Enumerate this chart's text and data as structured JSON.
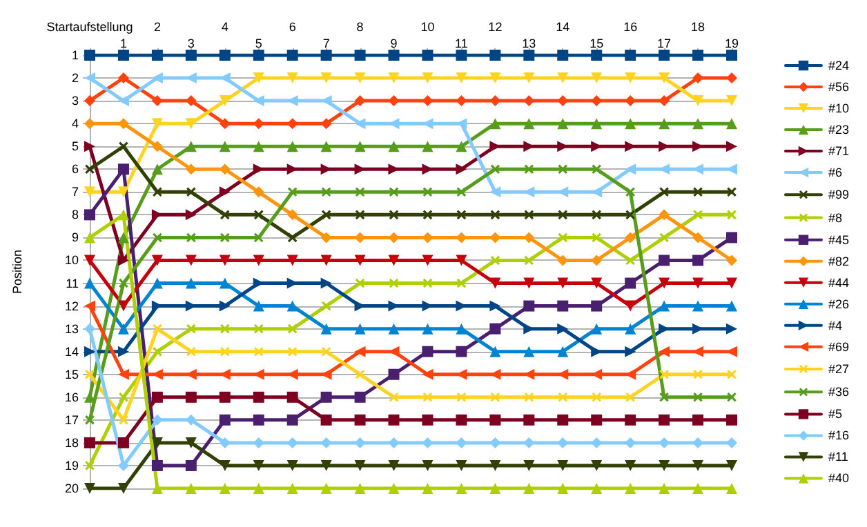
{
  "chart_data": {
    "type": "line",
    "ylabel": "Position",
    "categories": [
      "Startaufstellung",
      "1",
      "2",
      "3",
      "4",
      "5",
      "6",
      "7",
      "8",
      "9",
      "10",
      "11",
      "12",
      "13",
      "14",
      "15",
      "16",
      "17",
      "18",
      "19"
    ],
    "ylim": [
      20,
      1
    ],
    "yticks": [
      1,
      2,
      3,
      4,
      5,
      6,
      7,
      8,
      9,
      10,
      11,
      12,
      13,
      14,
      15,
      16,
      17,
      18,
      19,
      20
    ],
    "grid": "y",
    "legend": "right",
    "line_style": "solid",
    "series": [
      {
        "name": "#24",
        "color": "#004586",
        "marker": "square",
        "values": [
          1,
          1,
          1,
          1,
          1,
          1,
          1,
          1,
          1,
          1,
          1,
          1,
          1,
          1,
          1,
          1,
          1,
          1,
          1,
          1
        ]
      },
      {
        "name": "#56",
        "color": "#ff420e",
        "marker": "diamond",
        "values": [
          3,
          2,
          3,
          3,
          4,
          4,
          4,
          4,
          3,
          3,
          3,
          3,
          3,
          3,
          3,
          3,
          3,
          3,
          2,
          2
        ]
      },
      {
        "name": "#10",
        "color": "#ffd320",
        "marker": "triangle-down",
        "values": [
          7,
          7,
          4,
          4,
          3,
          2,
          2,
          2,
          2,
          2,
          2,
          2,
          2,
          2,
          2,
          2,
          2,
          2,
          3,
          3
        ]
      },
      {
        "name": "#23",
        "color": "#579d1c",
        "marker": "triangle",
        "values": [
          16,
          9,
          6,
          5,
          5,
          5,
          5,
          5,
          5,
          5,
          5,
          5,
          4,
          4,
          4,
          4,
          4,
          4,
          4,
          4
        ]
      },
      {
        "name": "#71",
        "color": "#7e0021",
        "marker": "triangle-right",
        "values": [
          5,
          10,
          8,
          8,
          7,
          6,
          6,
          6,
          6,
          6,
          6,
          6,
          5,
          5,
          5,
          5,
          5,
          5,
          5,
          5
        ]
      },
      {
        "name": "#6",
        "color": "#83caff",
        "marker": "triangle-left",
        "values": [
          2,
          3,
          2,
          2,
          2,
          3,
          3,
          3,
          4,
          4,
          4,
          4,
          7,
          7,
          7,
          7,
          6,
          6,
          6,
          6
        ]
      },
      {
        "name": "#99",
        "color": "#314004",
        "marker": "cross",
        "values": [
          6,
          5,
          7,
          7,
          8,
          8,
          9,
          8,
          8,
          8,
          8,
          8,
          8,
          8,
          8,
          8,
          8,
          7,
          7,
          7
        ]
      },
      {
        "name": "#8",
        "color": "#aecf00",
        "marker": "cross",
        "values": [
          19,
          16,
          14,
          13,
          13,
          13,
          13,
          12,
          11,
          11,
          11,
          11,
          10,
          10,
          9,
          9,
          10,
          9,
          8,
          8
        ]
      },
      {
        "name": "#45",
        "color": "#4b1f6f",
        "marker": "square",
        "values": [
          8,
          6,
          19,
          19,
          17,
          17,
          17,
          16,
          16,
          15,
          14,
          14,
          13,
          12,
          12,
          12,
          11,
          10,
          10,
          9
        ]
      },
      {
        "name": "#82",
        "color": "#ff950e",
        "marker": "diamond",
        "values": [
          4,
          4,
          5,
          6,
          6,
          7,
          8,
          9,
          9,
          9,
          9,
          9,
          9,
          9,
          10,
          10,
          9,
          8,
          9,
          10
        ]
      },
      {
        "name": "#44",
        "color": "#c5000b",
        "marker": "triangle-down",
        "values": [
          10,
          12,
          10,
          10,
          10,
          10,
          10,
          10,
          10,
          10,
          10,
          10,
          11,
          11,
          11,
          11,
          12,
          11,
          11,
          11
        ]
      },
      {
        "name": "#26",
        "color": "#0084d1",
        "marker": "triangle",
        "values": [
          11,
          13,
          11,
          11,
          11,
          12,
          12,
          13,
          13,
          13,
          13,
          13,
          14,
          14,
          14,
          13,
          13,
          12,
          12,
          12
        ]
      },
      {
        "name": "#4",
        "color": "#004586",
        "marker": "triangle-right",
        "values": [
          14,
          14,
          12,
          12,
          12,
          11,
          11,
          11,
          12,
          12,
          12,
          12,
          12,
          13,
          13,
          14,
          14,
          13,
          13,
          13
        ]
      },
      {
        "name": "#69",
        "color": "#ff420e",
        "marker": "triangle-left",
        "values": [
          12,
          15,
          15,
          15,
          15,
          15,
          15,
          15,
          14,
          14,
          15,
          15,
          15,
          15,
          15,
          15,
          15,
          14,
          14,
          14
        ]
      },
      {
        "name": "#27",
        "color": "#ffd320",
        "marker": "cross",
        "values": [
          15,
          17,
          13,
          14,
          14,
          14,
          14,
          14,
          15,
          16,
          16,
          16,
          16,
          16,
          16,
          16,
          16,
          15,
          15,
          15
        ]
      },
      {
        "name": "#36",
        "color": "#579d1c",
        "marker": "cross",
        "values": [
          17,
          11,
          9,
          9,
          9,
          9,
          7,
          7,
          7,
          7,
          7,
          7,
          6,
          6,
          6,
          6,
          7,
          16,
          16,
          16
        ]
      },
      {
        "name": "#5",
        "color": "#7e0021",
        "marker": "square",
        "values": [
          18,
          18,
          16,
          16,
          16,
          16,
          16,
          17,
          17,
          17,
          17,
          17,
          17,
          17,
          17,
          17,
          17,
          17,
          17,
          17
        ]
      },
      {
        "name": "#16",
        "color": "#83caff",
        "marker": "diamond",
        "values": [
          13,
          19,
          17,
          17,
          18,
          18,
          18,
          18,
          18,
          18,
          18,
          18,
          18,
          18,
          18,
          18,
          18,
          18,
          18,
          18
        ]
      },
      {
        "name": "#11",
        "color": "#314004",
        "marker": "triangle-down",
        "values": [
          20,
          20,
          18,
          18,
          19,
          19,
          19,
          19,
          19,
          19,
          19,
          19,
          19,
          19,
          19,
          19,
          19,
          19,
          19,
          19
        ]
      },
      {
        "name": "#40",
        "color": "#aecf00",
        "marker": "triangle",
        "values": [
          9,
          8,
          20,
          20,
          20,
          20,
          20,
          20,
          20,
          20,
          20,
          20,
          20,
          20,
          20,
          20,
          20,
          20,
          20,
          20
        ]
      }
    ]
  }
}
